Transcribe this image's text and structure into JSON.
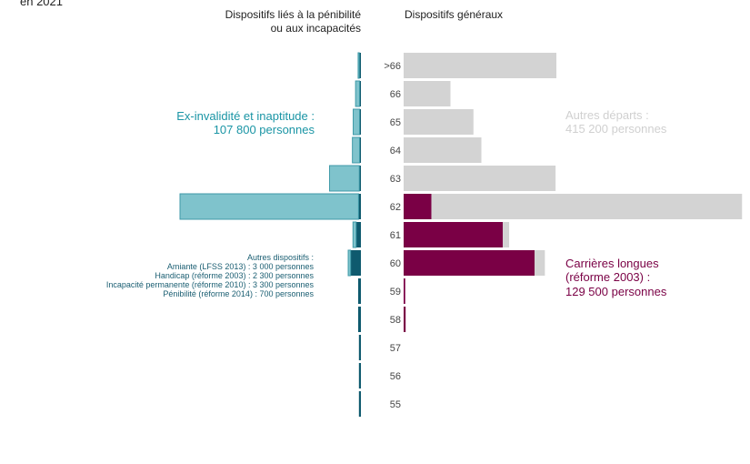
{
  "title_fragment": "en 2021",
  "left_panel_title_line1": "Dispositifs liés à la pénibilité",
  "left_panel_title_line2": "ou aux incapacités",
  "right_panel_title": "Dispositifs généraux",
  "annotations": {
    "invalidity_line1": "Ex-invalidité et inaptitude :",
    "invalidity_line2": "107 800 personnes",
    "other_departures_line1": "Autres départs :",
    "other_departures_line2": "415 200 personnes",
    "long_careers_line1": "Carrières longues",
    "long_careers_line2": "(réforme 2003) :",
    "long_careers_line3": "129 500 personnes",
    "other_devices_title": "Autres dispositifs :",
    "other_devices_items": [
      "Amiante (LFSS 2013) : 3 000 personnes",
      "Handicap (réforme 2003) : 2 300 personnes",
      "Incapacité permanente (réforme 2010) : 3 300 personnes",
      "Pénibilité (réforme 2014) : 700 personnes"
    ]
  },
  "colors": {
    "invalidity": "#7fc3cc",
    "invalidity_text": "#1a95a5",
    "other_devices": "#0e5a6e",
    "other_devices_text": "#1a5e72",
    "long_careers": "#7a0045",
    "other_departures": "#d3d3d3",
    "other_departures_text": "#d0d0d0",
    "age_label": "#444444"
  },
  "chart_data": {
    "type": "bar",
    "categories": [
      ">66",
      "66",
      "65",
      "64",
      "63",
      "62",
      "61",
      "60",
      "59",
      "58",
      "57",
      "56",
      "55"
    ],
    "left_series": [
      {
        "key": "invalidity",
        "values": [
          300,
          1000,
          1600,
          1800,
          7500,
          45000,
          800,
          600,
          0,
          0,
          0,
          0,
          0
        ]
      },
      {
        "key": "other_devices",
        "values": [
          400,
          300,
          300,
          300,
          400,
          600,
          1200,
          2600,
          700,
          700,
          500,
          500,
          500
        ]
      }
    ],
    "right_series": [
      {
        "key": "long_careers",
        "values": [
          0,
          0,
          0,
          0,
          0,
          7000,
          25000,
          33000,
          400,
          500,
          0,
          0,
          0
        ]
      },
      {
        "key": "other_departures",
        "values": [
          38500,
          11800,
          17600,
          19600,
          38300,
          78300,
          1600,
          2600,
          0,
          0,
          0,
          0,
          0
        ]
      }
    ]
  }
}
